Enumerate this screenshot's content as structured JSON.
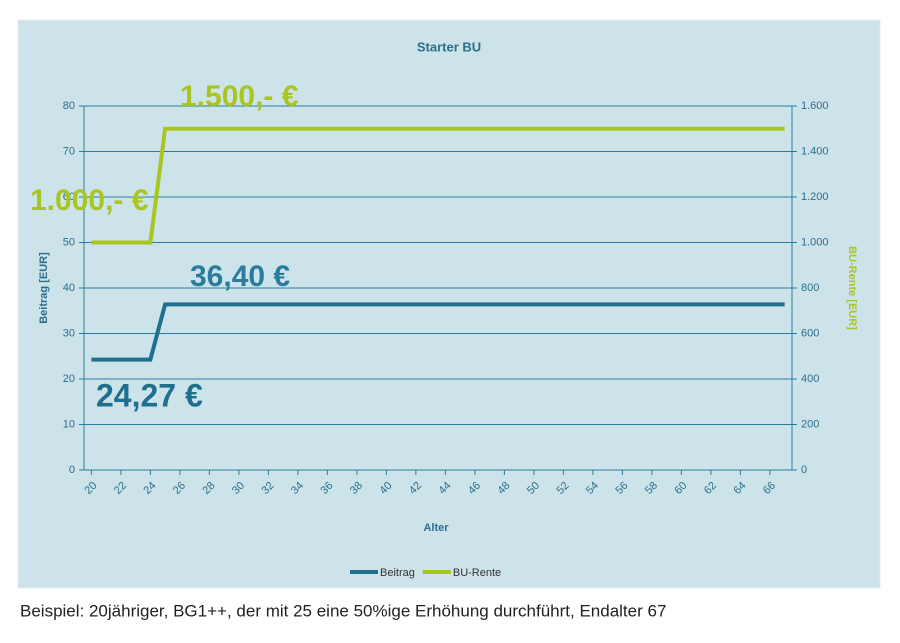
{
  "chart_data": {
    "type": "line",
    "title": "Starter BU",
    "xlabel": "Alter",
    "ylabel": "Beitrag [EUR]",
    "y2label": "BU-Rente [EUR]",
    "x": [
      20,
      21,
      22,
      23,
      24,
      25,
      26,
      27,
      28,
      29,
      30,
      31,
      32,
      33,
      34,
      35,
      36,
      37,
      38,
      39,
      40,
      41,
      42,
      43,
      44,
      45,
      46,
      47,
      48,
      49,
      50,
      51,
      52,
      53,
      54,
      55,
      56,
      57,
      58,
      59,
      60,
      61,
      62,
      63,
      64,
      65,
      66,
      67
    ],
    "series": [
      {
        "name": "Beitrag",
        "color": "#1f6f8f",
        "values": [
          24.27,
          24.27,
          24.27,
          24.27,
          24.27,
          36.4,
          36.4,
          36.4,
          36.4,
          36.4,
          36.4,
          36.4,
          36.4,
          36.4,
          36.4,
          36.4,
          36.4,
          36.4,
          36.4,
          36.4,
          36.4,
          36.4,
          36.4,
          36.4,
          36.4,
          36.4,
          36.4,
          36.4,
          36.4,
          36.4,
          36.4,
          36.4,
          36.4,
          36.4,
          36.4,
          36.4,
          36.4,
          36.4,
          36.4,
          36.4,
          36.4,
          36.4,
          36.4,
          36.4,
          36.4,
          36.4,
          36.4,
          36.4
        ]
      },
      {
        "name": "BU-Rente",
        "color": "#a8c61f",
        "axis": "y2",
        "values": [
          1000,
          1000,
          1000,
          1000,
          1000,
          1500,
          1500,
          1500,
          1500,
          1500,
          1500,
          1500,
          1500,
          1500,
          1500,
          1500,
          1500,
          1500,
          1500,
          1500,
          1500,
          1500,
          1500,
          1500,
          1500,
          1500,
          1500,
          1500,
          1500,
          1500,
          1500,
          1500,
          1500,
          1500,
          1500,
          1500,
          1500,
          1500,
          1500,
          1500,
          1500,
          1500,
          1500,
          1500,
          1500,
          1500,
          1500,
          1500
        ]
      }
    ],
    "xlim": [
      19.5,
      67.5
    ],
    "xticks": [
      20,
      22,
      24,
      26,
      28,
      30,
      32,
      34,
      36,
      38,
      40,
      42,
      44,
      46,
      48,
      50,
      52,
      54,
      56,
      58,
      60,
      62,
      64,
      66
    ],
    "ylim": [
      0,
      80
    ],
    "yticks": [
      0,
      10,
      20,
      30,
      40,
      50,
      60,
      70,
      80
    ],
    "y2lim": [
      0,
      1600
    ],
    "y2ticks": [
      0,
      200,
      400,
      600,
      800,
      {
        "value": 1000,
        "label": "1.000"
      },
      {
        "value": 1200,
        "label": "1.200"
      },
      {
        "value": 1400,
        "label": "1.400"
      },
      {
        "value": 1600,
        "label": "1.600"
      }
    ],
    "grid": true,
    "legend": "bottom",
    "annotations": [
      "1.500,- €",
      "1.000,- €",
      "36,40 €",
      "24,27 €"
    ]
  },
  "caption": "Beispiel: 20jähriger, BG1++, der mit 25 eine 50%ige Erhöhung durchführt, Endalter 67"
}
